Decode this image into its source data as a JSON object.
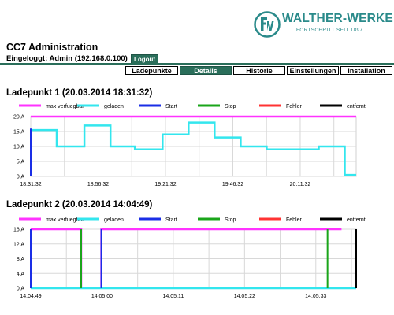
{
  "brand": {
    "name": "WALTHER-WERKE",
    "slogan": "FORTSCHRITT SEIT 1897",
    "color": "#2a8a8a"
  },
  "header": {
    "title": "CC7 Administration",
    "login_text": "Eingeloggt: Admin (192.168.0.100)",
    "logout_label": "Logout"
  },
  "tabs": [
    {
      "label": "Ladepunkte",
      "active": false
    },
    {
      "label": "Details",
      "active": true
    },
    {
      "label": "Historie",
      "active": false
    },
    {
      "label": "Einstellungen",
      "active": false
    },
    {
      "label": "Installation",
      "active": false
    }
  ],
  "chart_data": [
    {
      "type": "line",
      "title": "Ladepunkt 1 (20.03.2014 18:31:32)",
      "legend_position": "top",
      "grid": true,
      "ylim": [
        0,
        20
      ],
      "yticks": [
        {
          "v": 0,
          "label": "0 A"
        },
        {
          "v": 5,
          "label": "5 A"
        },
        {
          "v": 10,
          "label": "10 A"
        },
        {
          "v": 15,
          "label": "15 A"
        },
        {
          "v": 20,
          "label": "20 A"
        }
      ],
      "xlim": [
        0,
        100
      ],
      "xticks": [
        {
          "v": 0,
          "label": "18:31:32"
        },
        {
          "v": 20.7,
          "label": "18:56:32"
        },
        {
          "v": 41.4,
          "label": "19:21:32"
        },
        {
          "v": 62.1,
          "label": "19:46:32"
        },
        {
          "v": 82.8,
          "label": "20:11:32"
        }
      ],
      "series": [
        {
          "name": "max verfuegbar",
          "color": "#ff33ff",
          "points": [
            [
              0,
              20
            ],
            [
              100,
              20
            ]
          ]
        },
        {
          "name": "geladen",
          "color": "#33e6ee",
          "points": [
            [
              0,
              15.5
            ],
            [
              8,
              15.5
            ],
            [
              8,
              10
            ],
            [
              16.5,
              10
            ],
            [
              16.5,
              17
            ],
            [
              24.5,
              17
            ],
            [
              24.5,
              10
            ],
            [
              32,
              10
            ],
            [
              32,
              9
            ],
            [
              40.5,
              9
            ],
            [
              40.5,
              14
            ],
            [
              48.5,
              14
            ],
            [
              48.5,
              18
            ],
            [
              56.5,
              18
            ],
            [
              56.5,
              13
            ],
            [
              64.5,
              13
            ],
            [
              64.5,
              10
            ],
            [
              72.5,
              10
            ],
            [
              72.5,
              9
            ],
            [
              88.5,
              9
            ],
            [
              88.5,
              10
            ],
            [
              96.5,
              10
            ],
            [
              96.5,
              0.5
            ],
            [
              100,
              0.5
            ]
          ]
        },
        {
          "name": "Start",
          "color": "#1a2ee6",
          "points": [
            [
              0,
              0
            ],
            [
              0,
              16
            ]
          ]
        },
        {
          "name": "Stop",
          "color": "#1aa51a",
          "points": []
        },
        {
          "name": "Fehler",
          "color": "#ff3333",
          "points": []
        },
        {
          "name": "entfernt",
          "color": "#000000",
          "points": []
        }
      ]
    },
    {
      "type": "line",
      "title": "Ladepunkt 2 (20.03.2014 14:04:49)",
      "legend_position": "top",
      "grid": true,
      "ylim": [
        0,
        16
      ],
      "yticks": [
        {
          "v": 0,
          "label": "0 A"
        },
        {
          "v": 4,
          "label": "4 A"
        },
        {
          "v": 8,
          "label": "8 A"
        },
        {
          "v": 12,
          "label": "12 A"
        },
        {
          "v": 16,
          "label": "16 A"
        }
      ],
      "xlim": [
        0,
        100
      ],
      "xticks": [
        {
          "v": 0,
          "label": "14:04:49"
        },
        {
          "v": 21.9,
          "label": "14:05:00"
        },
        {
          "v": 43.8,
          "label": "14:05:11"
        },
        {
          "v": 65.7,
          "label": "14:05:22"
        },
        {
          "v": 87.6,
          "label": "14:05:33"
        }
      ],
      "series": [
        {
          "name": "max verfuegbar",
          "color": "#ff33ff",
          "points": [
            [
              0,
              16
            ],
            [
              15.5,
              16
            ],
            [
              15.5,
              0.15
            ],
            [
              21.7,
              0.15
            ],
            [
              21.7,
              16
            ],
            [
              95.5,
              16
            ]
          ]
        },
        {
          "name": "geladen",
          "color": "#33e6ee",
          "points": [
            [
              0,
              0
            ],
            [
              100,
              0
            ]
          ]
        },
        {
          "name": "Start",
          "color": "#1a2ee6",
          "points": [
            [
              0,
              0
            ],
            [
              0,
              16
            ],
            [
              21.7,
              0
            ],
            [
              21.7,
              16
            ]
          ]
        },
        {
          "name": "Stop",
          "color": "#1aa51a",
          "points": [
            [
              15.5,
              0
            ],
            [
              15.5,
              16
            ],
            [
              91.2,
              0
            ],
            [
              91.2,
              16
            ]
          ]
        },
        {
          "name": "Fehler",
          "color": "#ff3333",
          "points": []
        },
        {
          "name": "entfernt",
          "color": "#000000",
          "points": [
            [
              100,
              0
            ],
            [
              100,
              16
            ]
          ]
        }
      ]
    }
  ]
}
